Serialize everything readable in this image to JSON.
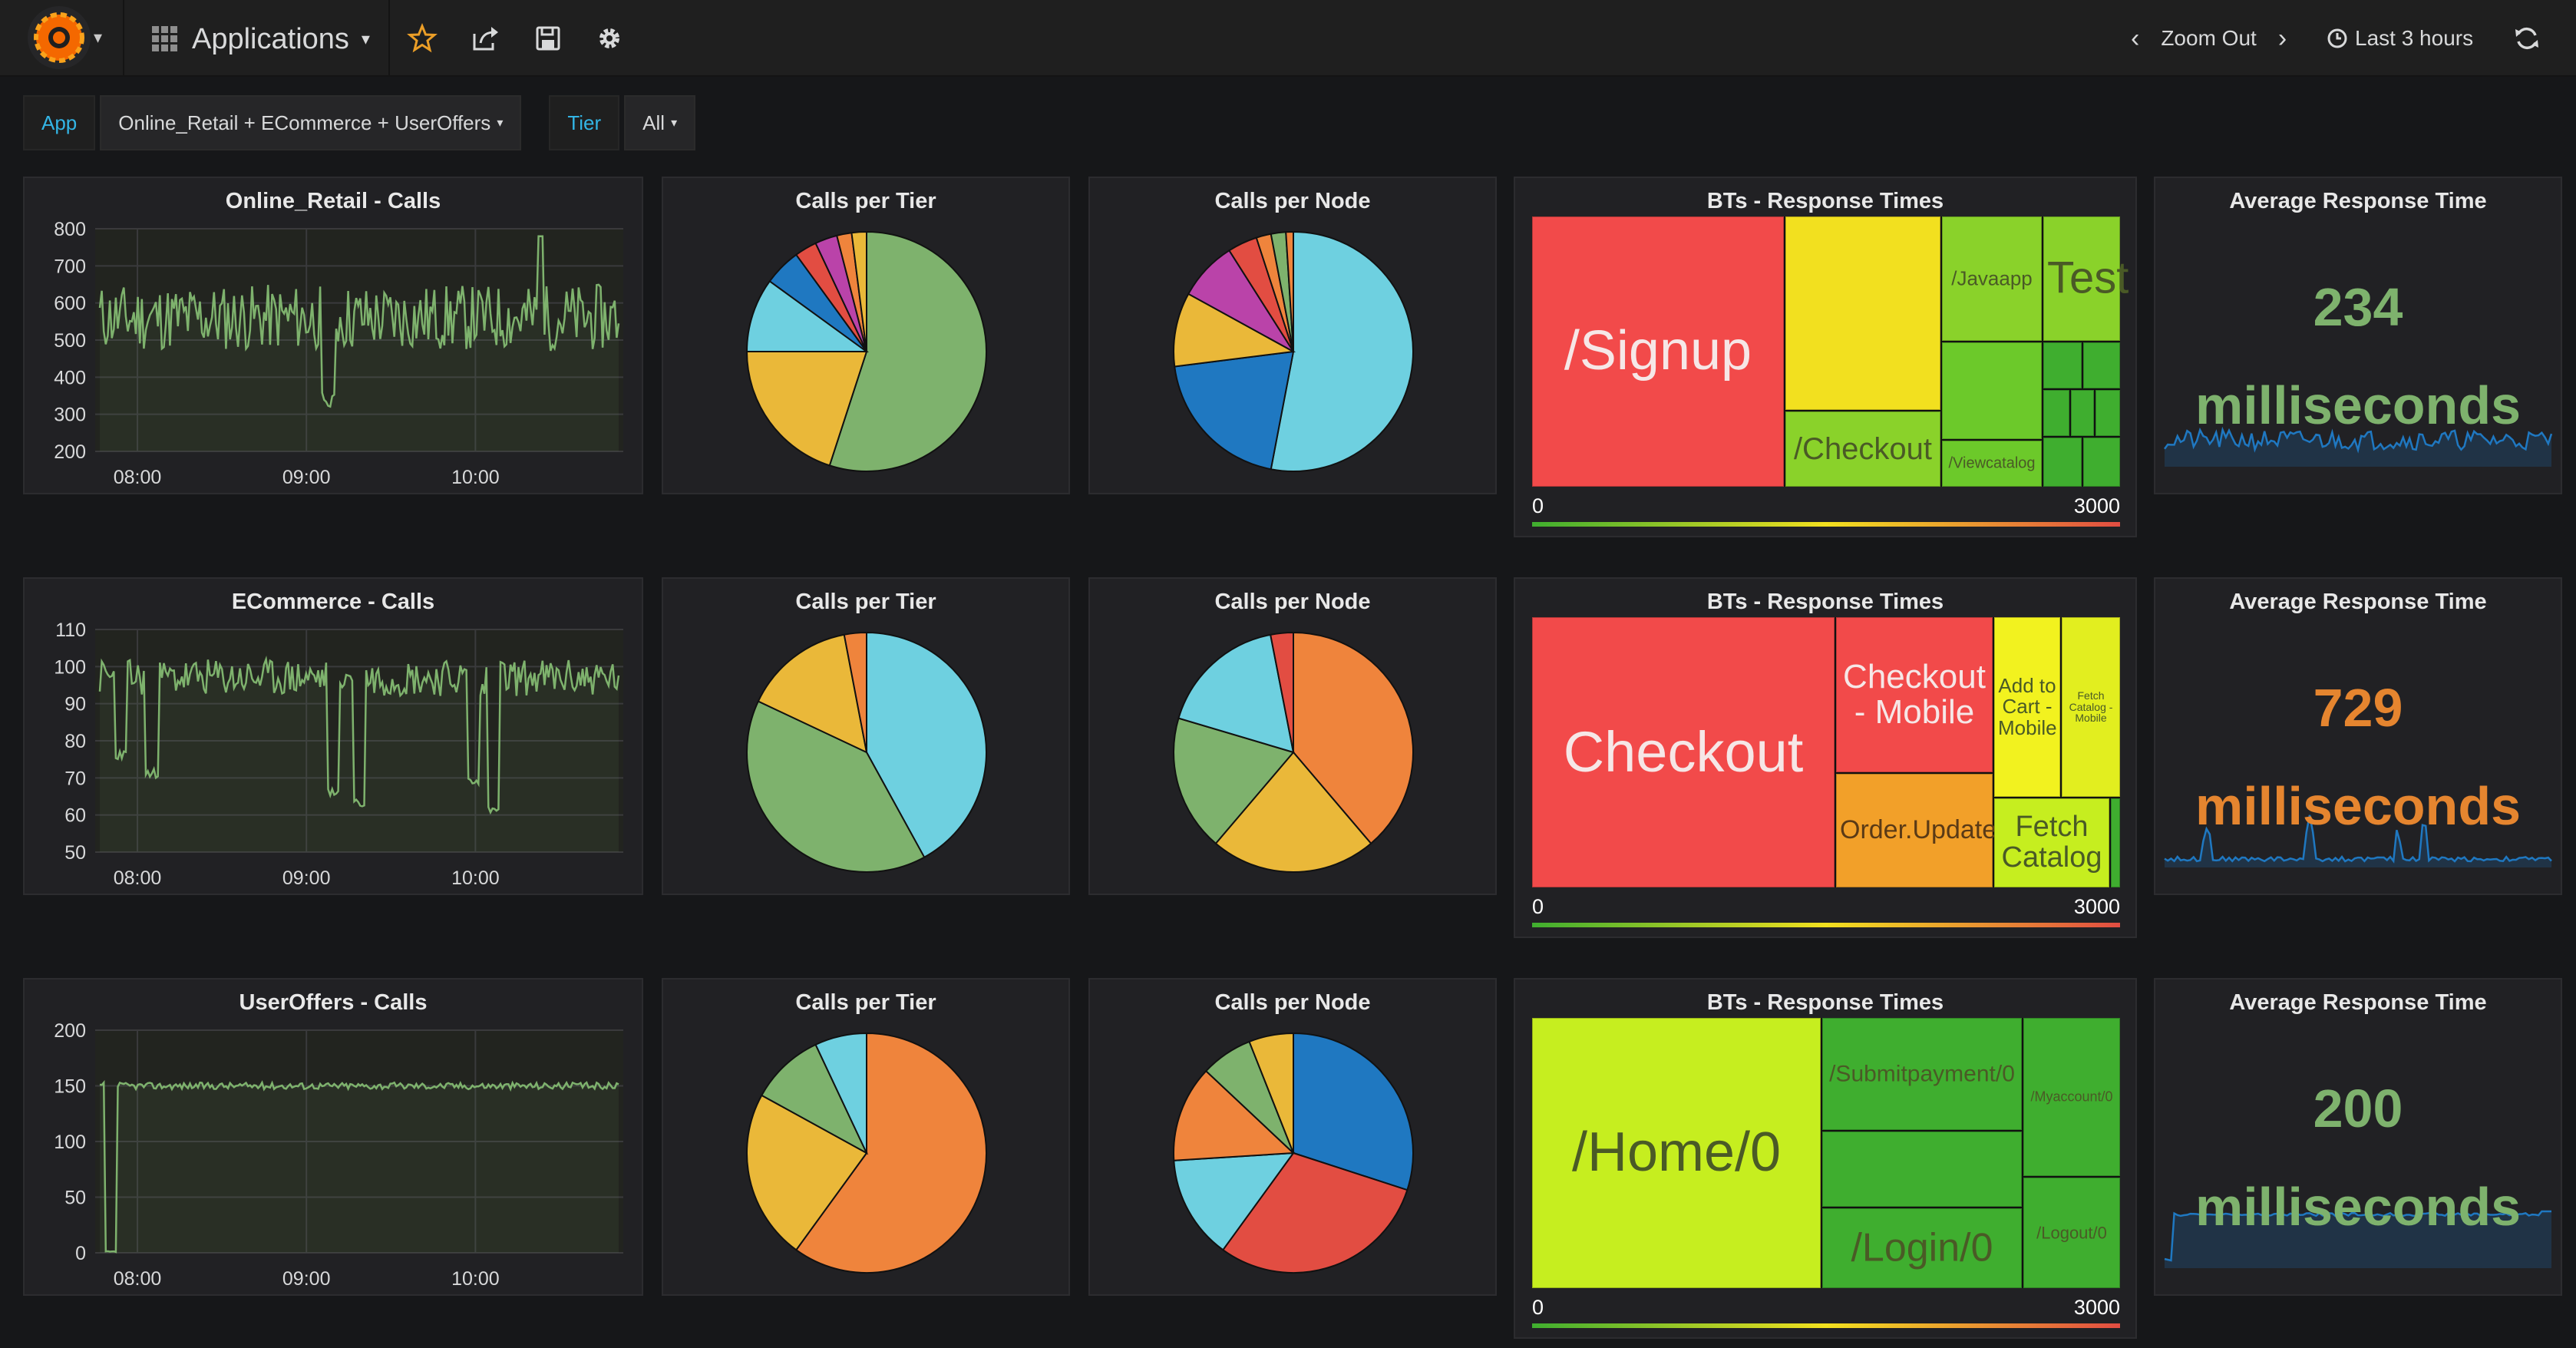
{
  "toolbar": {
    "dashboard_title": "Applications",
    "zoom_out": "Zoom Out",
    "time_range": "Last 3 hours"
  },
  "variables": [
    {
      "label": "App",
      "value": "Online_Retail + ECommerce + UserOffers"
    },
    {
      "label": "Tier",
      "value": "All"
    }
  ],
  "colors": {
    "line": "#7eb26d",
    "stat_green": "#7eb26d",
    "stat_orange": "#e5852f",
    "sparkline": "#1f78c1",
    "pie": [
      "#7eb26d",
      "#eab839",
      "#6ed0e0",
      "#ef843c",
      "#e24d42",
      "#1f78c1",
      "#ba43a9",
      "#705da0",
      "#508642"
    ]
  },
  "rows": [
    {
      "calls": {
        "title": "Online_Retail - Calls",
        "chart_data": {
          "type": "line",
          "x_ticks": [
            "08:00",
            "09:00",
            "10:00"
          ],
          "y_ticks": [
            "800",
            "700",
            "600",
            "500",
            "400",
            "300",
            "200"
          ],
          "ylim": [
            200,
            800
          ],
          "seed": 11,
          "base": 560,
          "amp": 90,
          "dips": [
            [
              0.44,
              320
            ]
          ],
          "spikes": [
            [
              0.85,
              780
            ]
          ]
        }
      },
      "tier_pie": {
        "title": "Calls per Tier",
        "chart_data": {
          "type": "pie",
          "values": [
            55,
            20,
            10,
            5,
            3,
            3,
            2,
            2
          ],
          "colors": [
            0,
            1,
            2,
            5,
            4,
            6,
            3,
            1
          ]
        }
      },
      "node_pie": {
        "title": "Calls per Node",
        "chart_data": {
          "type": "pie",
          "values": [
            53,
            20,
            10,
            8,
            4,
            2,
            2,
            1
          ],
          "colors": [
            2,
            5,
            1,
            6,
            4,
            3,
            0,
            3
          ]
        }
      },
      "bts": {
        "title": "BTs - Response Times",
        "range_min": "0",
        "range_max": "3000",
        "labels": {
          "signup": "/Signup",
          "checkout": "/Checkout",
          "javaapp": "/Javaapp",
          "test": "Test",
          "viewcatalog": "/Viewcatalog"
        }
      },
      "stat": {
        "title": "Average Response Time",
        "value": "234",
        "unit": "milliseconds",
        "color": "#7eb26d"
      }
    },
    {
      "calls": {
        "title": "ECommerce - Calls",
        "chart_data": {
          "type": "line",
          "x_ticks": [
            "08:00",
            "09:00",
            "10:00"
          ],
          "y_ticks": [
            "110",
            "100",
            "90",
            "80",
            "70",
            "60",
            "50"
          ],
          "ylim": [
            50,
            110
          ],
          "seed": 23,
          "base": 97,
          "amp": 5,
          "dips": [
            [
              0.04,
              75
            ],
            [
              0.1,
              70
            ],
            [
              0.45,
              65
            ],
            [
              0.5,
              62
            ],
            [
              0.72,
              68
            ],
            [
              0.76,
              60
            ]
          ],
          "spikes": []
        }
      },
      "tier_pie": {
        "title": "Calls per Tier",
        "chart_data": {
          "type": "pie",
          "values": [
            42,
            40,
            15,
            3
          ],
          "colors": [
            2,
            0,
            1,
            3
          ]
        }
      },
      "node_pie": {
        "title": "Calls per Node",
        "chart_data": {
          "type": "pie",
          "values": [
            38,
            22,
            18,
            17,
            3
          ],
          "colors": [
            3,
            1,
            0,
            2,
            4
          ]
        }
      },
      "bts": {
        "title": "BTs - Response Times",
        "range_min": "0",
        "range_max": "3000",
        "labels": {
          "checkout": "Checkout",
          "checkout_mobile": "Checkout - Mobile",
          "order_update": "Order.Update",
          "add_to_cart": "Add to Cart - Mobile",
          "fetch_catalog_mobile": "Fetch Catalog - Mobile",
          "fetch_catalog": "Fetch Catalog"
        }
      },
      "stat": {
        "title": "Average Response Time",
        "value": "729",
        "unit": "milliseconds",
        "color": "#e5852f"
      }
    },
    {
      "calls": {
        "title": "UserOffers - Calls",
        "chart_data": {
          "type": "line",
          "x_ticks": [
            "08:00",
            "09:00",
            "10:00"
          ],
          "y_ticks": [
            "200",
            "150",
            "100",
            "50",
            "0"
          ],
          "ylim": [
            0,
            200
          ],
          "seed": 37,
          "base": 150,
          "amp": 3,
          "dips": [
            [
              0.02,
              0
            ]
          ],
          "spikes": []
        }
      },
      "tier_pie": {
        "title": "Calls per Tier",
        "chart_data": {
          "type": "pie",
          "values": [
            60,
            23,
            10,
            7
          ],
          "colors": [
            3,
            1,
            0,
            2
          ]
        }
      },
      "node_pie": {
        "title": "Calls per Node",
        "chart_data": {
          "type": "pie",
          "values": [
            30,
            30,
            14,
            13,
            7,
            6
          ],
          "colors": [
            5,
            4,
            2,
            3,
            0,
            1
          ]
        }
      },
      "bts": {
        "title": "BTs - Response Times",
        "range_min": "0",
        "range_max": "3000",
        "labels": {
          "home": "/Home/0",
          "submitpayment": "/Submitpayment/0",
          "myaccount": "/Myaccount/0",
          "login": "/Login/0",
          "logout": "/Logout/0"
        }
      },
      "stat": {
        "title": "Average Response Time",
        "value": "200",
        "unit": "milliseconds",
        "color": "#7eb26d"
      }
    }
  ]
}
